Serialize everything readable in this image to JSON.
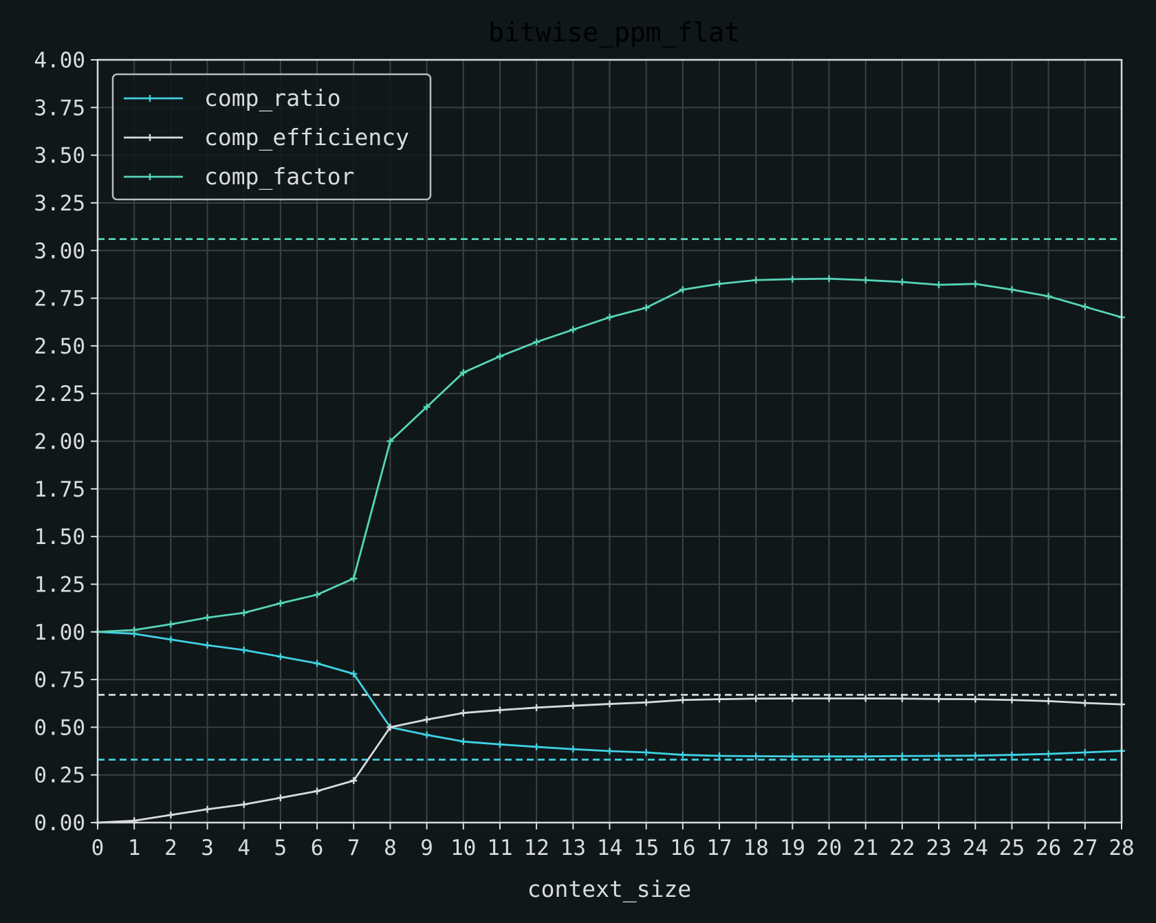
{
  "chart_data": {
    "type": "line",
    "title": "bitwise_ppm_flat",
    "xlabel": "context_size",
    "ylabel": "",
    "xlim": [
      0,
      28
    ],
    "ylim": [
      0,
      4
    ],
    "x": [
      0,
      1,
      2,
      3,
      4,
      5,
      6,
      7,
      8,
      9,
      10,
      11,
      12,
      13,
      14,
      15,
      16,
      17,
      18,
      19,
      20,
      21,
      22,
      23,
      24,
      25,
      26,
      27,
      28
    ],
    "x_ticks": [
      "0",
      "1",
      "2",
      "3",
      "4",
      "5",
      "6",
      "7",
      "8",
      "9",
      "10",
      "11",
      "12",
      "13",
      "14",
      "15",
      "16",
      "17",
      "18",
      "19",
      "20",
      "21",
      "22",
      "23",
      "24",
      "25",
      "26",
      "27",
      "28"
    ],
    "y_ticks": [
      "0.00",
      "0.25",
      "0.50",
      "0.75",
      "1.00",
      "1.25",
      "1.50",
      "1.75",
      "2.00",
      "2.25",
      "2.50",
      "2.75",
      "3.00",
      "3.25",
      "3.50",
      "3.75",
      "4.00"
    ],
    "grid": true,
    "legend_position": "top-left",
    "background": "#101719",
    "grid_color": "#3a4142",
    "axis_color": "#d9dcdb",
    "series": [
      {
        "name": "comp_ratio",
        "color": "#3fd2e2",
        "values": [
          1.0,
          0.99,
          0.96,
          0.93,
          0.905,
          0.87,
          0.835,
          0.78,
          0.5,
          0.46,
          0.425,
          0.41,
          0.397,
          0.385,
          0.375,
          0.368,
          0.355,
          0.35,
          0.348,
          0.347,
          0.347,
          0.347,
          0.349,
          0.35,
          0.351,
          0.355,
          0.36,
          0.368,
          0.376
        ]
      },
      {
        "name": "comp_efficiency",
        "color": "#d9dcdb",
        "values": [
          0.0,
          0.01,
          0.04,
          0.07,
          0.095,
          0.13,
          0.165,
          0.22,
          0.5,
          0.54,
          0.575,
          0.59,
          0.603,
          0.613,
          0.622,
          0.63,
          0.643,
          0.647,
          0.65,
          0.651,
          0.651,
          0.651,
          0.65,
          0.648,
          0.647,
          0.643,
          0.637,
          0.627,
          0.62
        ]
      },
      {
        "name": "comp_factor",
        "color": "#56d6b8",
        "values": [
          1.0,
          1.01,
          1.04,
          1.075,
          1.1,
          1.15,
          1.195,
          1.28,
          2.0,
          2.18,
          2.36,
          2.445,
          2.52,
          2.585,
          2.65,
          2.7,
          2.795,
          2.825,
          2.845,
          2.85,
          2.852,
          2.845,
          2.835,
          2.82,
          2.825,
          2.795,
          2.76,
          2.705,
          2.65
        ]
      }
    ],
    "reference_lines": [
      {
        "value": 3.06,
        "color": "#56d6b8"
      },
      {
        "value": 0.67,
        "color": "#d9dcdb"
      },
      {
        "value": 0.33,
        "color": "#3fd2e2"
      }
    ]
  }
}
